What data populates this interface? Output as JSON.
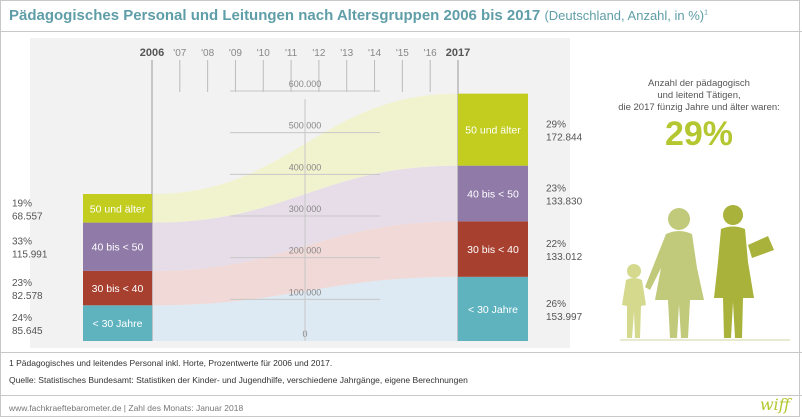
{
  "title": "Pädagogisches Personal und Leitungen nach Altersgruppen 2006 bis 2017",
  "subtitle": "(Deutschland, Anzahl, in %)",
  "subtitle_sup": "1",
  "callout": {
    "line1": "Anzahl der pädagogisch",
    "line2": "und leitend Tätigen,",
    "line3": "die 2017 fünzig Jahre und älter waren:",
    "value": "29%"
  },
  "footnote": "1  Pädagogisches und leitendes Personal inkl. Horte, Prozentwerte für 2006 und 2017.",
  "source": "Quelle: Statistisches Bundesamt: Statistiken der Kinder- und Jugendhilfe, verschiedene Jahrgänge, eigene Berechnungen",
  "footer": "www.fachkraeftebarometer.de | Zahl des Monats: Januar 2018",
  "brand": "wiff",
  "colors": {
    "title": "#5f9ea8",
    "accent": "#b5c730",
    "age_under30": "#5fb3bf",
    "age_30_40": "#a8402f",
    "age_40_50": "#8f7aa8",
    "age_50plus": "#c3cd1f"
  },
  "chart_data": {
    "type": "area",
    "title": "Pädagogisches Personal und Leitungen nach Altersgruppen 2006 bis 2017",
    "x": [
      2006,
      2007,
      2008,
      2009,
      2010,
      2011,
      2012,
      2013,
      2014,
      2015,
      2016,
      2017
    ],
    "x_labels": [
      "2006",
      "'07",
      "'08",
      "'09",
      "'10",
      "'11",
      "'12",
      "'13",
      "'14",
      "'15",
      "'16",
      "2017"
    ],
    "ylim": [
      0,
      600000
    ],
    "yticks": [
      0,
      100000,
      200000,
      300000,
      400000,
      500000,
      600000
    ],
    "ytick_labels": [
      "0",
      "100.000",
      "200.000",
      "300.000",
      "400.000",
      "500.000",
      "600.000"
    ],
    "series": [
      {
        "name": "< 30 Jahre",
        "start": 85645,
        "start_label": "85.645",
        "start_pct": "24%",
        "end": 153997,
        "end_label": "153.997",
        "end_pct": "26%",
        "color": "#5fb3bf",
        "band_color": "#dde9f3"
      },
      {
        "name": "30 bis < 40",
        "start": 82578,
        "start_label": "82.578",
        "start_pct": "23%",
        "end": 133012,
        "end_label": "133.012",
        "end_pct": "22%",
        "color": "#a8402f",
        "band_color": "#f0d9d6"
      },
      {
        "name": "40 bis < 50",
        "start": 115991,
        "start_label": "115.991",
        "start_pct": "33%",
        "end": 133830,
        "end_label": "133.830",
        "end_pct": "23%",
        "color": "#8f7aa8",
        "band_color": "#e7dde9"
      },
      {
        "name": "50 und älter",
        "start": 68557,
        "start_label": "68.557",
        "start_pct": "19%",
        "end": 172844,
        "end_label": "172.844",
        "end_pct": "29%",
        "color": "#c3cd1f",
        "band_color": "#f1f3cf"
      }
    ]
  }
}
